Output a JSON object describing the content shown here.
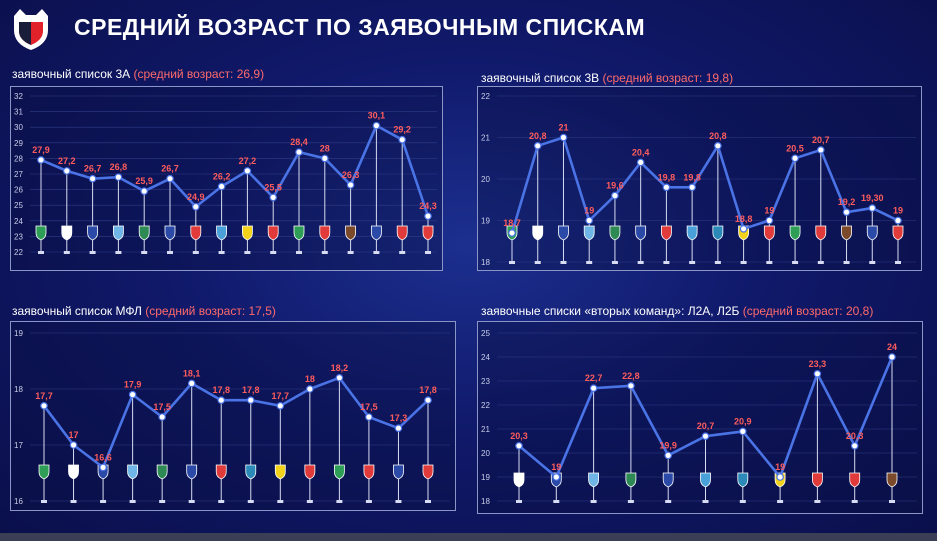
{
  "page": {
    "title": "СРЕДНИЙ ВОЗРАСТ ПО ЗАЯВОЧНЫМ СПИСКАМ"
  },
  "colors": {
    "line": "#4a73e6",
    "value_label": "#ff5c5c",
    "grid": "#2f3c86",
    "frame": "#8a95c8"
  },
  "charts": [
    {
      "title_main": "заявочный список 3А",
      "title_avg": "(средний возраст: 26,9)"
    },
    {
      "title_main": "заявочный список 3В",
      "title_avg": "(средний возраст: 19,8)"
    },
    {
      "title_main": "заявочный список МФЛ",
      "title_avg": "(средний возраст: 17,5)"
    },
    {
      "title_main": "заявочные списки «вторых команд»: Л2А, Л2Б",
      "title_avg": "(средний возраст: 20,8)"
    }
  ],
  "chart_data": [
    {
      "type": "line",
      "title": "заявочный список 3А (средний возраст: 26,9)",
      "ylim": [
        22,
        32
      ],
      "yticks": [
        "22",
        "23",
        "24",
        "25",
        "26",
        "27",
        "28",
        "29",
        "30",
        "31",
        "32"
      ],
      "values": [
        27.9,
        27.2,
        26.7,
        26.8,
        25.9,
        26.7,
        24.9,
        26.2,
        27.2,
        25.5,
        28.4,
        28,
        26.3,
        30.1,
        29.2,
        24.3
      ],
      "labels": [
        "27,9",
        "27,2",
        "26,7",
        "26,8",
        "25,9",
        "26,7",
        "24,9",
        "26,2",
        "27,2",
        "25,5",
        "28,4",
        "28",
        "26,3",
        "30,1",
        "29,2",
        "24,3"
      ],
      "grid": true
    },
    {
      "type": "line",
      "title": "заявочный список 3В (средний возраст: 19,8)",
      "ylim": [
        18,
        22
      ],
      "yticks": [
        "18",
        "19",
        "20",
        "21",
        "22"
      ],
      "values": [
        18.7,
        20.8,
        21,
        19,
        19.6,
        20.4,
        19.8,
        19.8,
        20.8,
        18.8,
        19,
        20.5,
        20.7,
        19.2,
        19.3,
        19
      ],
      "labels": [
        "18,7",
        "20,8",
        "21",
        "19",
        "19,6",
        "20,4",
        "19,8",
        "19,8",
        "20,8",
        "18,8",
        "19",
        "20,5",
        "20,7",
        "19,2",
        "19,30",
        "19"
      ],
      "grid": true
    },
    {
      "type": "line",
      "title": "заявочный список МФЛ (средний возраст: 17,5)",
      "ylim": [
        16,
        19
      ],
      "yticks": [
        "16",
        "17",
        "18",
        "19"
      ],
      "values": [
        17.7,
        17,
        16.6,
        17.9,
        17.5,
        18.1,
        17.8,
        17.8,
        17.7,
        18,
        18.2,
        17.5,
        17.3,
        17.8
      ],
      "labels": [
        "17,7",
        "17",
        "16,6",
        "17,9",
        "17,5",
        "18,1",
        "17,8",
        "17,8",
        "17,7",
        "18",
        "18,2",
        "17,5",
        "17,3",
        "17,8"
      ],
      "grid": true
    },
    {
      "type": "line",
      "title": "заявочные списки «вторых команд»: Л2А, Л2Б (средний возраст: 20,8)",
      "ylim": [
        18,
        25
      ],
      "yticks": [
        "18",
        "19",
        "20",
        "21",
        "22",
        "23",
        "24",
        "25"
      ],
      "values": [
        20.3,
        19,
        22.7,
        22.8,
        19.9,
        20.7,
        20.9,
        19,
        23.3,
        20.3,
        24
      ],
      "labels": [
        "20,3",
        "19",
        "22,7",
        "22,8",
        "19,9",
        "20,7",
        "20,9",
        "19",
        "23,3",
        "20,3",
        "24"
      ],
      "grid": true
    }
  ],
  "club_icon_colors": [
    [
      "#2e9e57",
      "#ffffff",
      "#2b4aa8",
      "#6fb6e6",
      "#2e8a55",
      "#2b4aa8",
      "#e03a3a",
      "#4aa0d8",
      "#f2d21a",
      "#e03a3a",
      "#2e9e57",
      "#e03a3a",
      "#7a4a2a",
      "#2b4aa8",
      "#e03a3a",
      "#e03a3a"
    ],
    [
      "#2e9e57",
      "#ffffff",
      "#2b4aa8",
      "#6fb6e6",
      "#2e8a55",
      "#2b4aa8",
      "#e03a3a",
      "#4aa0d8",
      "#2b8ab8",
      "#f2d21a",
      "#e03a3a",
      "#2e9e57",
      "#e03a3a",
      "#7a4a2a",
      "#2b4aa8",
      "#e03a3a"
    ],
    [
      "#2e9e57",
      "#ffffff",
      "#2b4aa8",
      "#6fb6e6",
      "#2e8a55",
      "#2b4aa8",
      "#e03a3a",
      "#2b8ab8",
      "#f2d21a",
      "#e03a3a",
      "#2e9e57",
      "#e03a3a",
      "#2b4aa8",
      "#e03a3a"
    ],
    [
      "#ffffff",
      "#2b4aa8",
      "#6fb6e6",
      "#2e8a55",
      "#2b4aa8",
      "#4aa0d8",
      "#2b8ab8",
      "#f2d21a",
      "#e03a3a",
      "#e03a3a",
      "#7a4a2a"
    ]
  ]
}
